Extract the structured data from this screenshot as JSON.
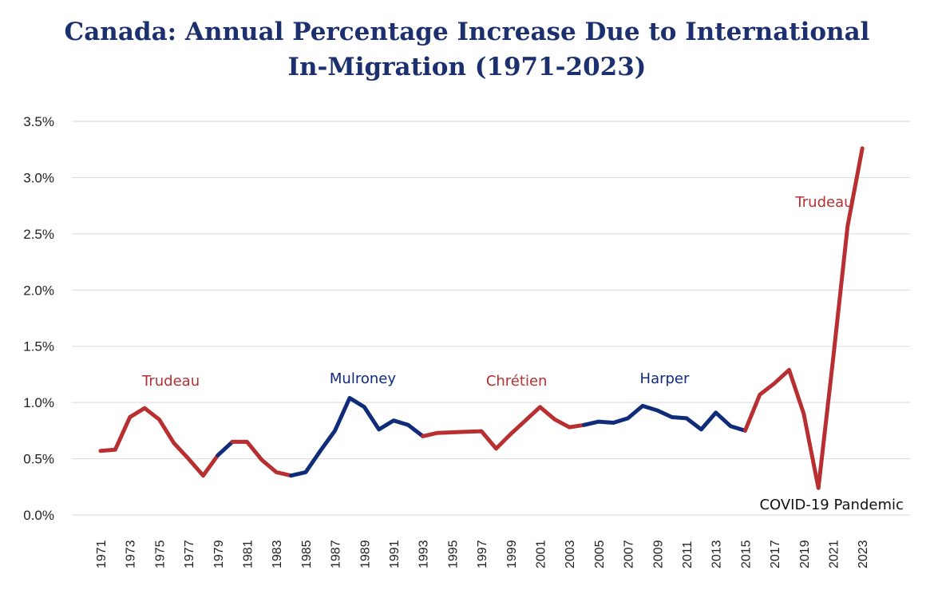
{
  "chart_data": {
    "type": "line",
    "title_line1": "Canada: Annual Percentage Increase Due to International",
    "title_line2": "In-Migration (1971-2023)",
    "xlabel": "",
    "ylabel": "",
    "ylim": [
      0,
      3.5
    ],
    "y_ticks": [
      "0.0%",
      "0.5%",
      "1.0%",
      "1.5%",
      "2.0%",
      "2.5%",
      "3.0%",
      "3.5%"
    ],
    "y_tick_values": [
      0,
      0.5,
      1.0,
      1.5,
      2.0,
      2.5,
      3.0,
      3.5
    ],
    "x_tick_labels": [
      "1971",
      "1973",
      "1975",
      "1977",
      "1979",
      "1981",
      "1983",
      "1985",
      "1987",
      "1989",
      "1991",
      "1993",
      "1995",
      "1997",
      "1999",
      "2001",
      "2003",
      "2005",
      "2007",
      "2009",
      "2011",
      "2013",
      "2015",
      "2017",
      "2019",
      "2021",
      "2023"
    ],
    "grid": true,
    "legend": "none",
    "years": [
      1971,
      1972,
      1973,
      1974,
      1975,
      1976,
      1977,
      1978,
      1979,
      1980,
      1981,
      1982,
      1983,
      1984,
      1985,
      1986,
      1987,
      1988,
      1989,
      1990,
      1991,
      1992,
      1993,
      1994,
      1995,
      1996,
      1997,
      1998,
      1999,
      2000,
      2001,
      2002,
      2003,
      2004,
      2005,
      2006,
      2007,
      2008,
      2009,
      2010,
      2011,
      2012,
      2013,
      2014,
      2015,
      2016,
      2017,
      2018,
      2019,
      2020,
      2021,
      2022,
      2023
    ],
    "values": [
      0.57,
      0.58,
      0.87,
      0.95,
      0.85,
      0.64,
      0.5,
      0.35,
      0.53,
      0.65,
      0.65,
      0.49,
      0.38,
      0.35,
      0.38,
      0.57,
      0.75,
      1.04,
      0.96,
      0.76,
      0.84,
      0.8,
      0.7,
      0.73,
      0.735,
      0.74,
      0.745,
      0.59,
      0.72,
      0.84,
      0.96,
      0.85,
      0.78,
      0.8,
      0.83,
      0.82,
      0.86,
      0.97,
      0.93,
      0.87,
      0.86,
      0.76,
      0.91,
      0.79,
      0.75,
      1.07,
      1.17,
      1.29,
      0.9,
      0.24,
      1.38,
      2.57,
      3.26
    ],
    "segments": [
      {
        "party": "liberal",
        "from": 1971,
        "to": 1979
      },
      {
        "party": "conservative",
        "from": 1979,
        "to": 1980
      },
      {
        "party": "liberal",
        "from": 1980,
        "to": 1984
      },
      {
        "party": "conservative",
        "from": 1984,
        "to": 1993
      },
      {
        "party": "liberal",
        "from": 1993,
        "to": 2004
      },
      {
        "party": "conservative",
        "from": 2004,
        "to": 2015
      },
      {
        "party": "liberal",
        "from": 2015,
        "to": 2023
      }
    ],
    "colors": {
      "liberal": "#b82f32",
      "conservative": "#0f2b7a"
    },
    "annotations": [
      {
        "text": "Trudeau",
        "year": 1975.8,
        "value": 1.15,
        "party": "liberal"
      },
      {
        "text": "Mulroney",
        "year": 1988.9,
        "value": 1.17,
        "party": "conservative"
      },
      {
        "text": "Chrétien",
        "year": 1999.4,
        "value": 1.15,
        "party": "liberal"
      },
      {
        "text": "Harper",
        "year": 2009.5,
        "value": 1.17,
        "party": "conservative"
      },
      {
        "text": "Trudeau",
        "year": 2020.4,
        "value": 2.74,
        "party": "liberal"
      },
      {
        "text": "COVID-19 Pandemic",
        "year": 2020.9,
        "value": 0.05,
        "party": "neutral"
      }
    ]
  }
}
